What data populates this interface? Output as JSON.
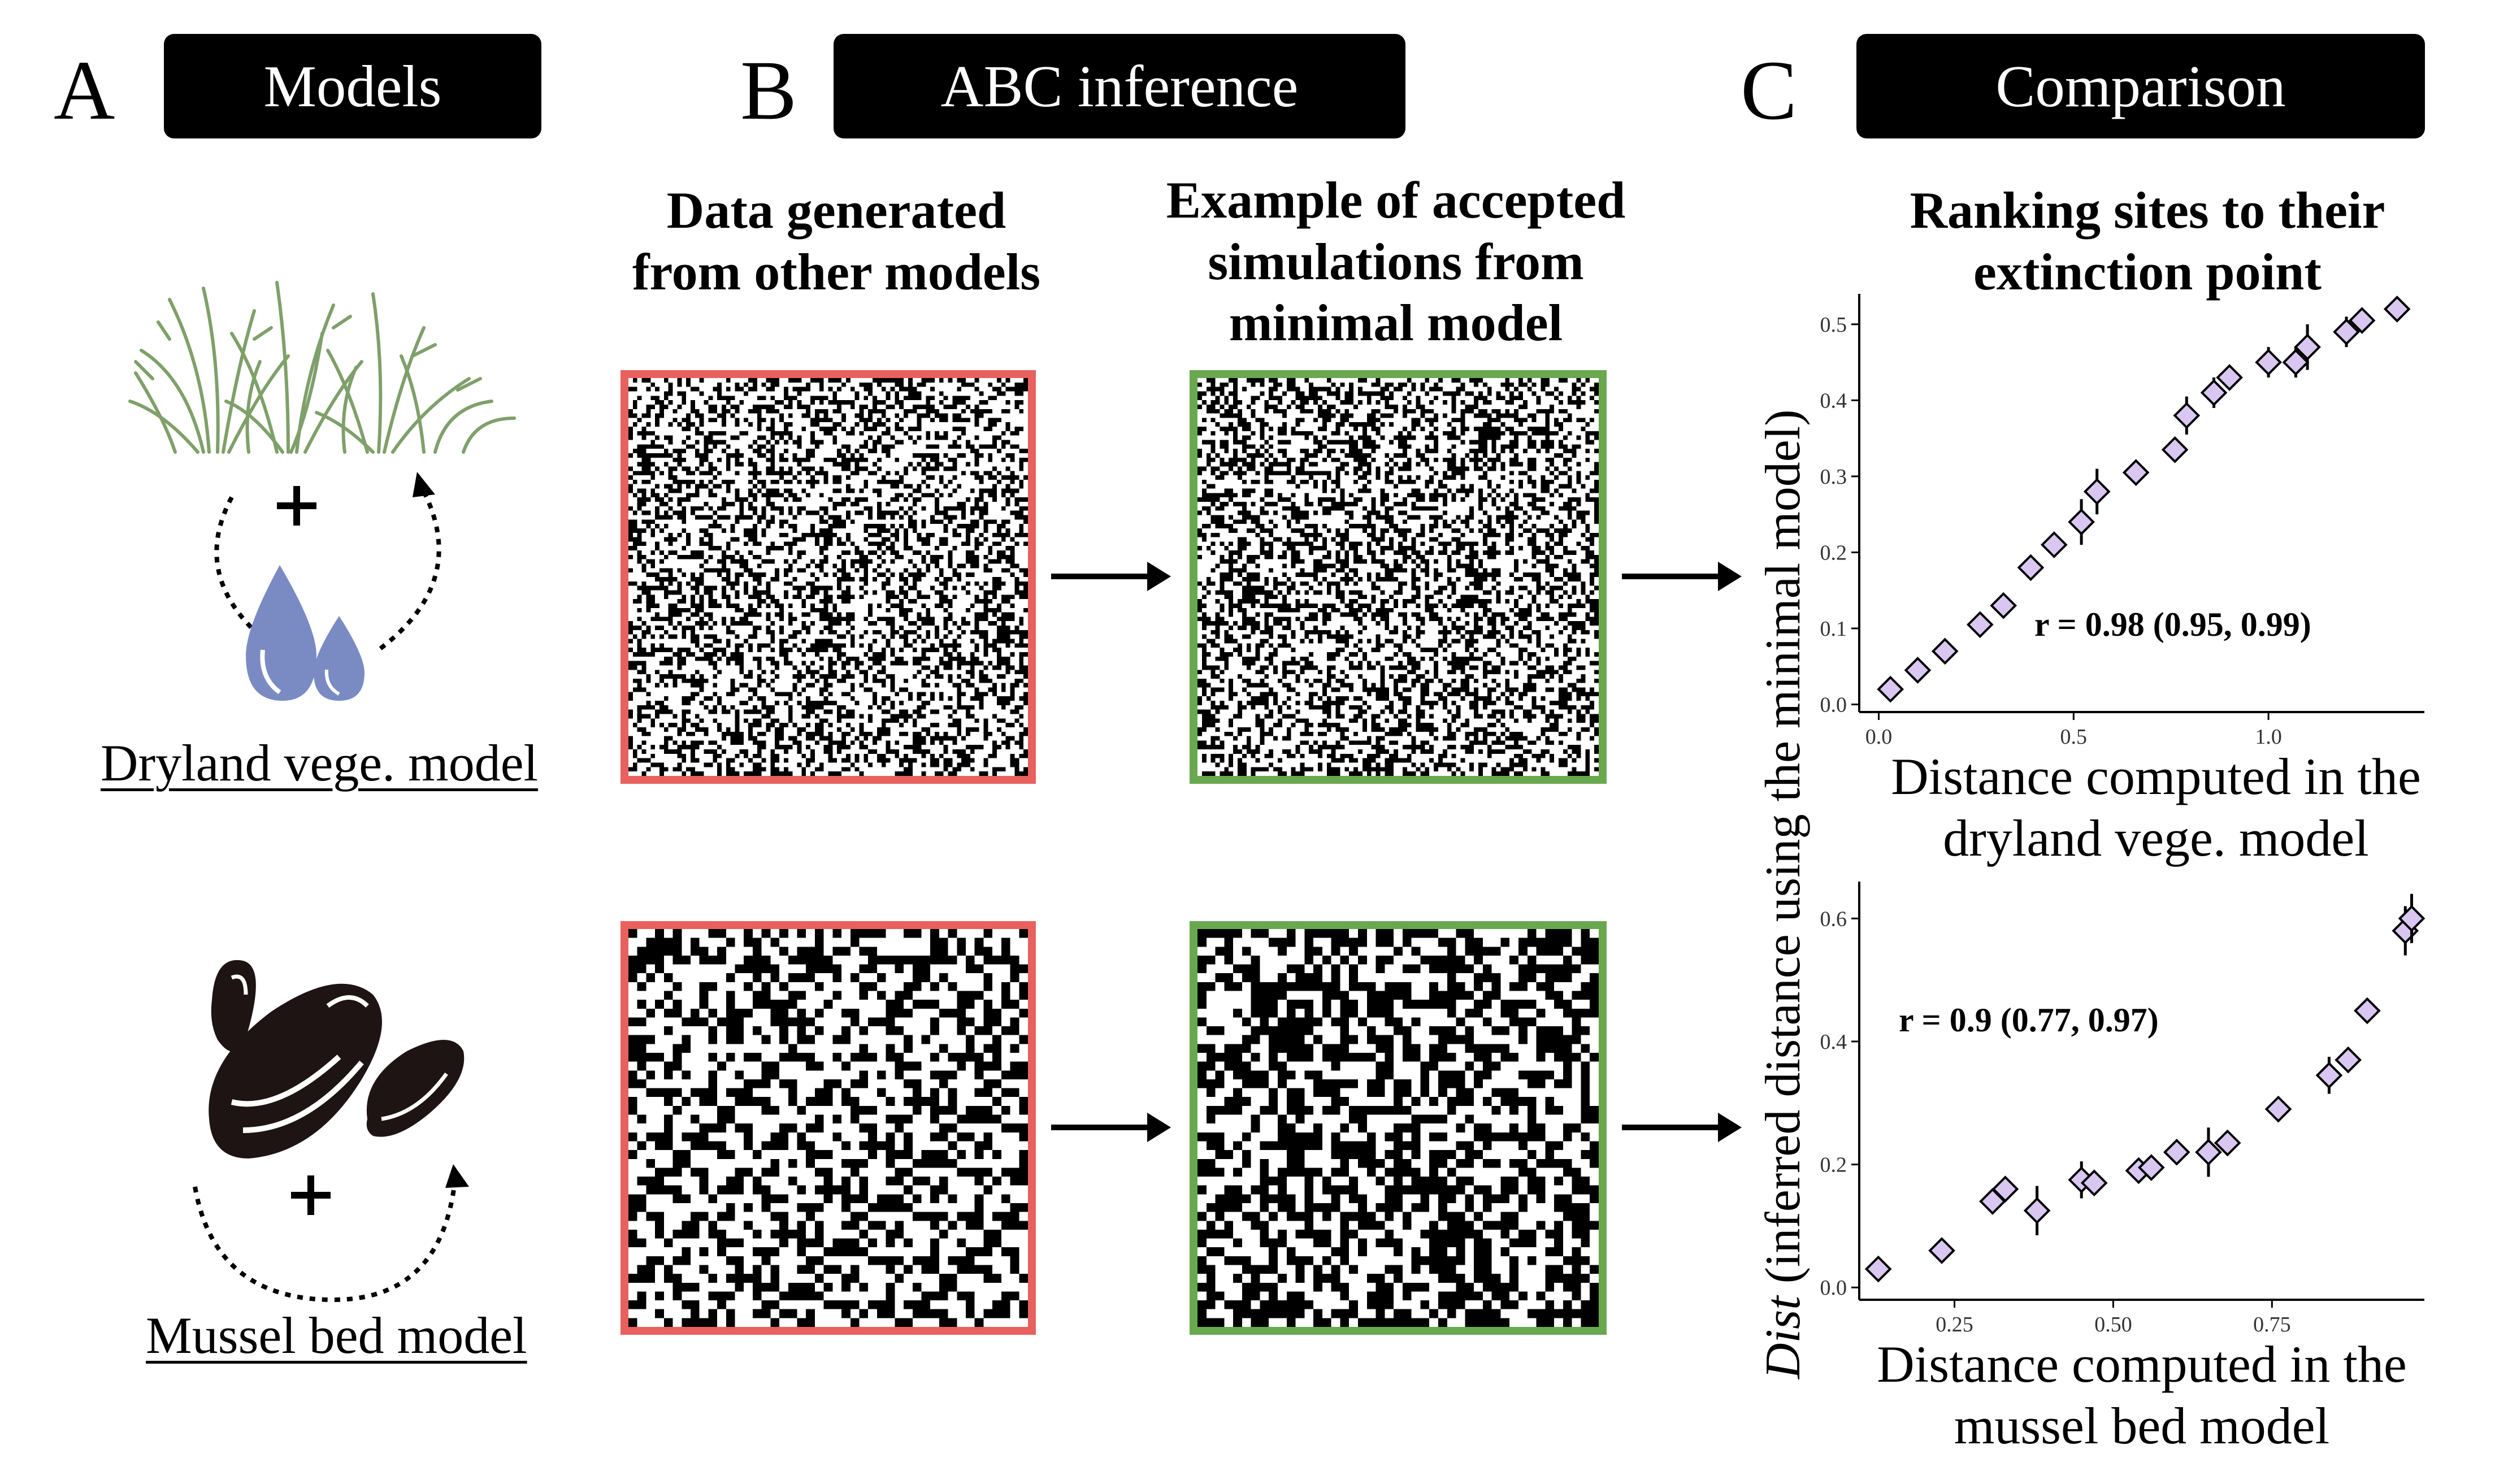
{
  "panels": [
    {
      "letter": "A",
      "title": "Models"
    },
    {
      "letter": "B",
      "title": "ABC inference"
    },
    {
      "letter": "C",
      "title": "Comparison"
    }
  ],
  "models": {
    "dryland_caption": "Dryland vege. model",
    "mussel_caption": "Mussel bed model",
    "plus": "+"
  },
  "abc": {
    "left_heading": [
      "Data generated",
      "from other models"
    ],
    "right_heading": [
      "Example of accepted",
      "simulations from",
      "minimal model"
    ],
    "arrow_glyph": "→",
    "red_border": "#e8615e",
    "green_border": "#69a84f"
  },
  "comparison": {
    "heading": [
      "Ranking sites to their",
      "extinction point"
    ],
    "y_title_italic": "Dist",
    "y_title_rest": " (inferred distance using the minimal model)",
    "marker_color": "#d9c7f2"
  },
  "chart_data": [
    {
      "type": "scatter",
      "title": "",
      "xlabel": "Distance computed in the dryland vege. model",
      "ylabel": "Dist (inferred distance using the minimal model)",
      "xlim": [
        -0.05,
        1.4
      ],
      "ylim": [
        -0.01,
        0.54
      ],
      "xticks": [
        0.0,
        0.5,
        1.0
      ],
      "xtick_labels": [
        "0.0",
        "0.5",
        "1.0"
      ],
      "yticks": [
        0.0,
        0.1,
        0.2,
        0.3,
        0.4,
        0.5
      ],
      "ytick_labels": [
        "0.0",
        "0.1",
        "0.2",
        "0.3",
        "0.4",
        "0.5"
      ],
      "annotation": "r = 0.98 (0.95, 0.99)",
      "grid": false,
      "x": [
        0.03,
        0.1,
        0.17,
        0.26,
        0.32,
        0.39,
        0.45,
        0.52,
        0.56,
        0.66,
        0.76,
        0.79,
        0.86,
        0.9,
        1.0,
        1.07,
        1.1,
        1.2,
        1.24,
        1.33
      ],
      "y": [
        0.02,
        0.045,
        0.07,
        0.105,
        0.13,
        0.18,
        0.21,
        0.24,
        0.28,
        0.305,
        0.335,
        0.38,
        0.41,
        0.43,
        0.45,
        0.45,
        0.47,
        0.49,
        0.505,
        0.52
      ],
      "err": [
        0.01,
        0.01,
        0.01,
        0.01,
        0.01,
        0.012,
        0.012,
        0.03,
        0.03,
        0.015,
        0.015,
        0.025,
        0.02,
        0.015,
        0.02,
        0.02,
        0.03,
        0.02,
        0.01,
        0.01
      ]
    },
    {
      "type": "scatter",
      "title": "",
      "xlabel": "Distance computed in the mussel bed model",
      "ylabel": "Dist (inferred distance using the minimal model)",
      "xlim": [
        0.1,
        0.99
      ],
      "ylim": [
        -0.02,
        0.66
      ],
      "xticks": [
        0.25,
        0.5,
        0.75
      ],
      "xtick_labels": [
        "0.25",
        "0.50",
        "0.75"
      ],
      "yticks": [
        0.0,
        0.2,
        0.4,
        0.6
      ],
      "ytick_labels": [
        "0.0",
        "0.2",
        "0.4",
        "0.6"
      ],
      "annotation": "r = 0.9 (0.77, 0.97)",
      "grid": false,
      "x": [
        0.13,
        0.23,
        0.31,
        0.33,
        0.38,
        0.45,
        0.47,
        0.54,
        0.56,
        0.6,
        0.65,
        0.68,
        0.76,
        0.84,
        0.87,
        0.9,
        0.96,
        0.97
      ],
      "y": [
        0.03,
        0.06,
        0.14,
        0.16,
        0.125,
        0.175,
        0.17,
        0.19,
        0.195,
        0.22,
        0.22,
        0.235,
        0.29,
        0.345,
        0.37,
        0.45,
        0.58,
        0.6
      ],
      "err": [
        0.01,
        0.01,
        0.02,
        0.02,
        0.04,
        0.03,
        0.02,
        0.02,
        0.01,
        0.015,
        0.04,
        0.02,
        0.02,
        0.03,
        0.02,
        0.02,
        0.04,
        0.04
      ]
    }
  ]
}
